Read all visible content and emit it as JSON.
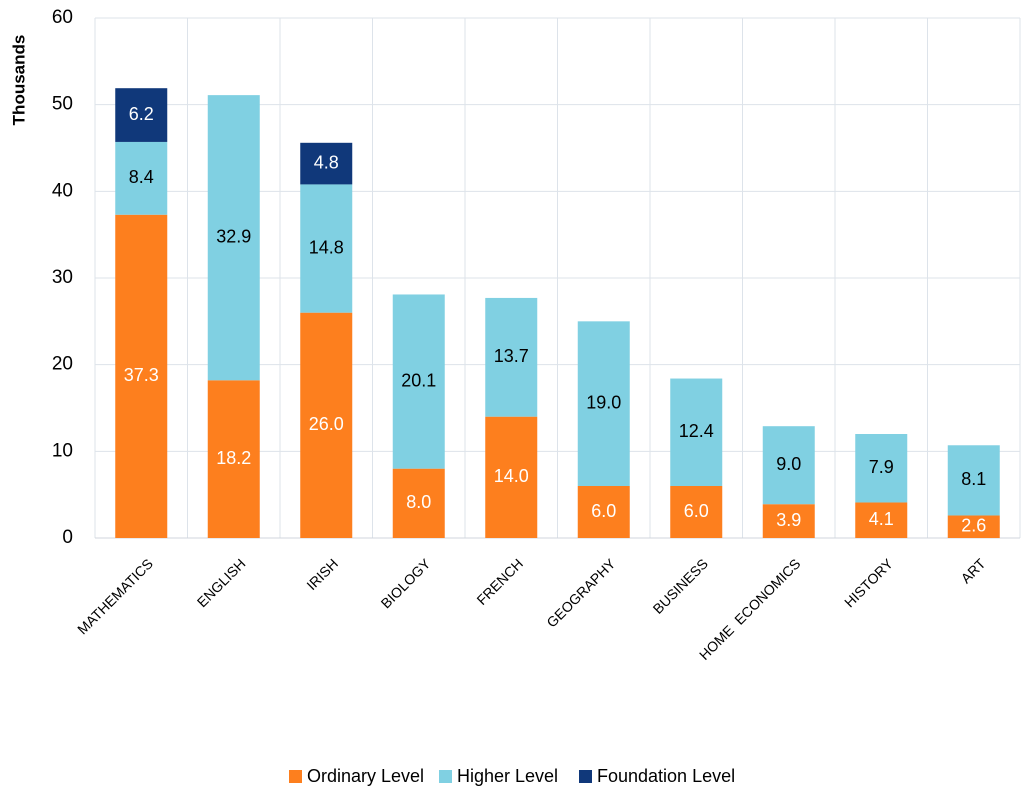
{
  "chart_data": {
    "type": "stacked_bar",
    "y_label": "Thousands",
    "categories": [
      "MATHEMATICS",
      "ENGLISH",
      "IRISH",
      "BIOLOGY",
      "FRENCH",
      "GEOGRAPHY",
      "BUSINESS",
      "HOME  ECONOMICS",
      "HISTORY",
      "ART"
    ],
    "series": [
      {
        "name": "Ordinary Level",
        "color": "#fd7f1e",
        "label_color": "#ffffff",
        "values": [
          37.3,
          18.2,
          26.0,
          8.0,
          14.0,
          6.0,
          6.0,
          3.9,
          4.1,
          2.6
        ],
        "value_labels": [
          "37.3",
          "18.2",
          "26.0",
          "8.0",
          "14.0",
          "6.0",
          "6.0",
          "3.9",
          "4.1",
          "2.6"
        ]
      },
      {
        "name": "Higher Level",
        "color": "#80d0e2",
        "label_color": "#000000",
        "values": [
          8.4,
          32.9,
          14.8,
          20.1,
          13.7,
          19.0,
          12.4,
          9.0,
          7.9,
          8.1
        ],
        "value_labels": [
          "8.4",
          "32.9",
          "14.8",
          "20.1",
          "13.7",
          "19.0",
          "12.4",
          "9.0",
          "7.9",
          "8.1"
        ]
      },
      {
        "name": "Foundation Level",
        "color": "#10387a",
        "label_color": "#ffffff",
        "values": [
          6.2,
          null,
          4.8,
          null,
          null,
          null,
          null,
          null,
          null,
          null
        ],
        "value_labels": [
          "6.2",
          null,
          "4.8",
          null,
          null,
          null,
          null,
          null,
          null,
          null
        ]
      }
    ],
    "ylim": [
      0,
      60
    ],
    "yticks": [
      0,
      10,
      20,
      30,
      40,
      50,
      60
    ],
    "grid": true,
    "legend": "bottom"
  }
}
